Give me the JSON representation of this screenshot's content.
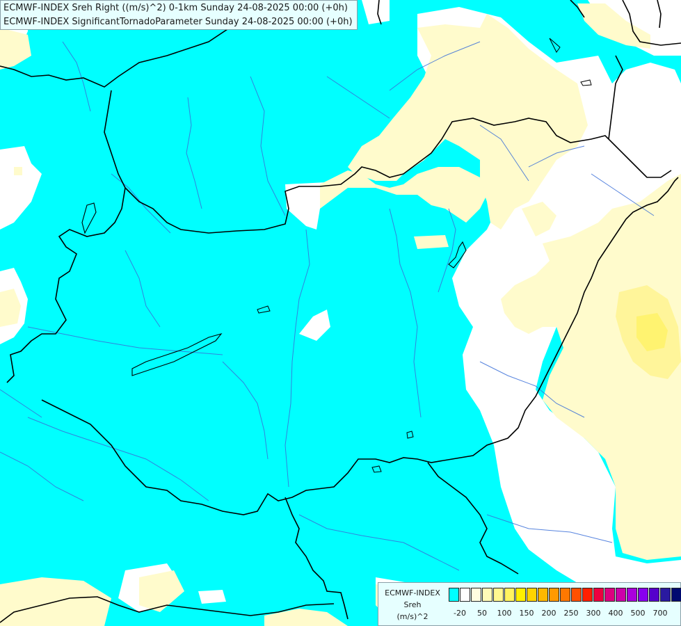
{
  "title": {
    "line1": "ECMWF-INDEX Sreh Right ((m/s)^2) 0-1km Sunday 24-08-2025 00:00 (+0h)",
    "line2": "ECMWF-INDEX SignificantTornadoParameter Sunday 24-08-2025 00:00 (+0h)"
  },
  "legend": {
    "line1": "ECMWF-INDEX",
    "line2": "Sreh",
    "line3": "(m/s)^2",
    "colors": [
      "#00ffff",
      "#ffffff",
      "#fffde0",
      "#fffbb8",
      "#fff890",
      "#fff460",
      "#fff000",
      "#ffd400",
      "#ffb800",
      "#ff9a00",
      "#ff7800",
      "#ff5000",
      "#ff2000",
      "#ee0040",
      "#dd0080",
      "#cc00aa",
      "#aa00dd",
      "#8800ee",
      "#5500cc",
      "#2a1aa0",
      "#000a70"
    ],
    "ticks": [
      "-20",
      "50",
      "100",
      "150",
      "200",
      "250",
      "300",
      "400",
      "500",
      "700"
    ]
  },
  "colors": {
    "background": "#00ffff",
    "low_sreh": "#ffffff",
    "light_yellow": "#fffbcc",
    "yellow": "#fff370",
    "border": "#000000",
    "river": "#3a6fd8"
  }
}
